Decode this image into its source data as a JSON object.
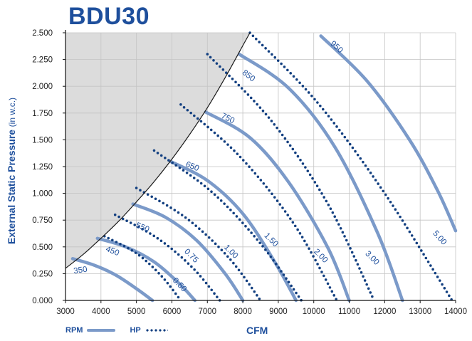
{
  "chart_data": {
    "type": "line",
    "title": "BDU30",
    "xlabel": "CFM",
    "ylabel_bold": "External Static Pressure",
    "ylabel_unit": "(in w.c.)",
    "xlim": [
      3000,
      14000
    ],
    "ylim": [
      0,
      2.5
    ],
    "x_ticks": [
      "3000",
      "4000",
      "5000",
      "6000",
      "7000",
      "8000",
      "9000",
      "10000",
      "11000",
      "12000",
      "13000",
      "14000"
    ],
    "y_ticks": [
      "0.000",
      "0.250",
      "0.500",
      "0.750",
      "1.000",
      "1.250",
      "1.500",
      "1.750",
      "2.000",
      "2.250",
      "2.500"
    ],
    "grid": true,
    "legend": [
      {
        "label": "RPM",
        "style": "solid"
      },
      {
        "label": "HP",
        "style": "dotted"
      }
    ],
    "legend_position": "bottom-left",
    "colors": {
      "rpm": "#7b9ac9",
      "hp": "#123f80",
      "limit": "#1a1a1a",
      "shade": "#dcdcdc",
      "text": "#1e4f9c"
    },
    "limit_curve": {
      "x": [
        3000,
        3500,
        4000,
        4500,
        5000,
        5500,
        6000,
        6500,
        7000,
        7500,
        8000,
        8200
      ],
      "y": [
        0.3,
        0.43,
        0.58,
        0.74,
        0.92,
        1.11,
        1.32,
        1.55,
        1.8,
        2.08,
        2.38,
        2.5
      ]
    },
    "series": [
      {
        "name": "350",
        "kind": "rpm",
        "x": [
          3200,
          3800,
          4400,
          5000,
          5450
        ],
        "y": [
          0.39,
          0.33,
          0.24,
          0.11,
          0.0
        ]
      },
      {
        "name": "450",
        "kind": "rpm",
        "x": [
          3900,
          4700,
          5500,
          6200,
          6650
        ],
        "y": [
          0.58,
          0.5,
          0.36,
          0.16,
          0.0
        ]
      },
      {
        "name": "550",
        "kind": "rpm",
        "x": [
          4900,
          5800,
          6700,
          7500,
          8000
        ],
        "y": [
          0.9,
          0.78,
          0.56,
          0.25,
          0.0
        ]
      },
      {
        "name": "650",
        "kind": "rpm",
        "x": [
          5950,
          7000,
          8000,
          8900,
          9500
        ],
        "y": [
          1.3,
          1.12,
          0.81,
          0.36,
          0.0
        ]
      },
      {
        "name": "750",
        "kind": "rpm",
        "x": [
          6950,
          8200,
          9300,
          10400,
          11000
        ],
        "y": [
          1.76,
          1.52,
          1.1,
          0.49,
          0.0
        ]
      },
      {
        "name": "850",
        "kind": "rpm",
        "x": [
          7900,
          9300,
          10600,
          11800,
          12500
        ],
        "y": [
          2.3,
          1.98,
          1.43,
          0.63,
          0.0
        ]
      },
      {
        "name": "950",
        "kind": "rpm",
        "x": [
          10200,
          11500,
          12700,
          13500,
          14000
        ],
        "y": [
          2.47,
          2.05,
          1.5,
          1.02,
          0.65
        ]
      },
      {
        "name": "0.50",
        "kind": "hp",
        "x": [
          4100,
          5000,
          5700,
          6250
        ],
        "y": [
          0.6,
          0.44,
          0.23,
          0.0
        ]
      },
      {
        "name": "0.75",
        "kind": "hp",
        "x": [
          4400,
          5600,
          6600,
          7350
        ],
        "y": [
          0.8,
          0.58,
          0.3,
          0.0
        ]
      },
      {
        "name": "1.00",
        "kind": "hp",
        "x": [
          5000,
          6400,
          7600,
          8500
        ],
        "y": [
          1.05,
          0.77,
          0.4,
          0.0
        ]
      },
      {
        "name": "1.50",
        "kind": "hp",
        "x": [
          5500,
          7100,
          8500,
          9650
        ],
        "y": [
          1.4,
          1.02,
          0.53,
          0.0
        ]
      },
      {
        "name": "2.00",
        "kind": "hp",
        "x": [
          6250,
          7900,
          9450,
          10650
        ],
        "y": [
          1.83,
          1.35,
          0.71,
          0.0
        ]
      },
      {
        "name": "3.00",
        "kind": "hp",
        "x": [
          7000,
          8800,
          10400,
          11700
        ],
        "y": [
          2.3,
          1.68,
          0.9,
          0.0
        ]
      },
      {
        "name": "5.00",
        "kind": "hp",
        "x": [
          8200,
          10100,
          12000,
          13900
        ],
        "y": [
          2.5,
          1.85,
          1.0,
          0.0
        ]
      }
    ]
  }
}
